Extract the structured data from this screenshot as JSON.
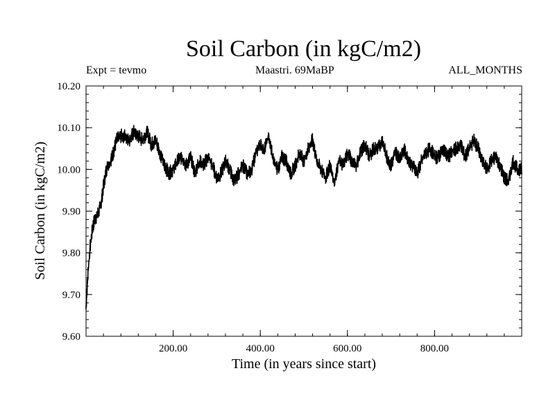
{
  "chart_data": {
    "type": "line",
    "title": "Soil Carbon (in kgC/m2)",
    "experiment": "Expt = tevmo",
    "period": "Maastri.  69MaBP",
    "season": "ALL_MONTHS",
    "xlabel": "Time (in years since start)",
    "ylabel": "Soil Carbon (in kgC/m2)",
    "xlim": [
      0,
      1000
    ],
    "ylim": [
      9.6,
      10.2
    ],
    "x_ticks": [
      200,
      400,
      600,
      800
    ],
    "x_tick_labels": [
      "200.00",
      "400.00",
      "600.00",
      "800.00"
    ],
    "y_ticks": [
      9.6,
      9.7,
      9.8,
      9.9,
      10.0,
      10.1,
      10.2
    ],
    "y_tick_labels": [
      "9.60",
      "9.70",
      "9.80",
      "9.90",
      "10.00",
      "10.10",
      "10.20"
    ],
    "series": [
      {
        "name": "Soil Carbon",
        "color": "#000000",
        "x": [
          0,
          5,
          10,
          15,
          20,
          25,
          30,
          35,
          40,
          45,
          50,
          55,
          60,
          65,
          70,
          80,
          90,
          100,
          110,
          120,
          130,
          140,
          150,
          160,
          170,
          180,
          190,
          200,
          210,
          220,
          230,
          240,
          250,
          260,
          270,
          280,
          290,
          300,
          310,
          320,
          330,
          340,
          350,
          360,
          370,
          380,
          390,
          400,
          410,
          420,
          430,
          440,
          450,
          460,
          470,
          480,
          490,
          500,
          510,
          520,
          530,
          540,
          550,
          560,
          570,
          580,
          590,
          600,
          610,
          620,
          630,
          640,
          650,
          660,
          670,
          680,
          690,
          700,
          710,
          720,
          730,
          740,
          750,
          760,
          770,
          780,
          790,
          800,
          810,
          820,
          830,
          840,
          850,
          860,
          870,
          880,
          890,
          900,
          910,
          920,
          930,
          940,
          950,
          960,
          970,
          980,
          990,
          1000
        ],
        "values": [
          9.67,
          9.76,
          9.82,
          9.86,
          9.88,
          9.89,
          9.9,
          9.92,
          9.96,
          9.99,
          10.01,
          10.02,
          10.03,
          10.05,
          10.07,
          10.08,
          10.08,
          10.07,
          10.09,
          10.08,
          10.07,
          10.09,
          10.06,
          10.07,
          10.04,
          10.01,
          9.99,
          10.0,
          10.02,
          10.03,
          10.01,
          10.03,
          9.99,
          10.02,
          10.01,
          10.03,
          10.01,
          9.98,
          9.99,
          10.02,
          10.0,
          9.97,
          9.99,
          10.01,
          9.99,
          10.0,
          10.04,
          10.06,
          10.05,
          10.08,
          10.02,
          10.0,
          10.03,
          10.02,
          9.99,
          10.01,
          10.04,
          10.02,
          10.05,
          10.07,
          10.02,
          10.0,
          9.98,
          10.01,
          9.97,
          10.02,
          10.01,
          10.04,
          10.02,
          10.01,
          10.04,
          10.06,
          10.03,
          10.05,
          10.05,
          10.07,
          10.03,
          10.01,
          10.04,
          10.03,
          10.05,
          10.02,
          10.01,
          9.99,
          10.02,
          10.04,
          10.05,
          10.03,
          10.03,
          10.05,
          10.03,
          10.04,
          10.05,
          10.06,
          10.03,
          10.05,
          10.07,
          10.05,
          10.02,
          10.0,
          10.02,
          10.03,
          10.01,
          9.98,
          9.97,
          10.02,
          10.0,
          10.0
        ]
      }
    ]
  }
}
